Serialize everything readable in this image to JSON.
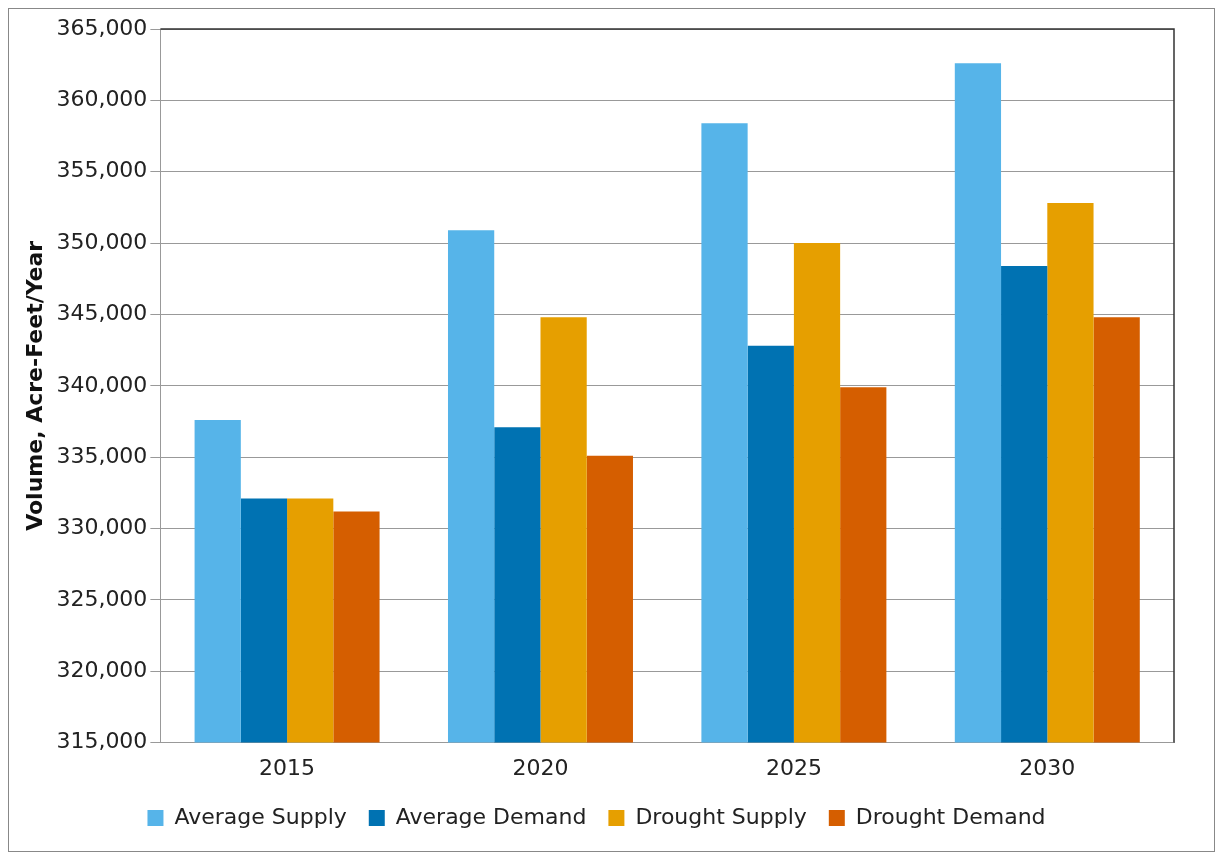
{
  "chart_data": {
    "type": "bar",
    "ylabel": "Volume, Acre-Feet/Year",
    "categories": [
      "2015",
      "2020",
      "2025",
      "2030"
    ],
    "series": [
      {
        "name": "Average Supply",
        "color": "#56b4e9",
        "values": [
          337600,
          350900,
          358400,
          362600
        ]
      },
      {
        "name": "Average Demand",
        "color": "#0072b2",
        "values": [
          332100,
          337100,
          342800,
          348400
        ]
      },
      {
        "name": "Drought Supply",
        "color": "#e69f00",
        "values": [
          332100,
          344800,
          350000,
          352800
        ]
      },
      {
        "name": "Drought Demand",
        "color": "#d55e00",
        "values": [
          331200,
          335100,
          339900,
          344800
        ]
      }
    ],
    "ylim": [
      315000,
      365000
    ],
    "yticks": [
      {
        "value": 315000,
        "label": "315,000"
      },
      {
        "value": 320000,
        "label": "320,000"
      },
      {
        "value": 325000,
        "label": "325,000"
      },
      {
        "value": 330000,
        "label": "330,000"
      },
      {
        "value": 335000,
        "label": "335,000"
      },
      {
        "value": 340000,
        "label": "340,000"
      },
      {
        "value": 345000,
        "label": "345,000"
      },
      {
        "value": 350000,
        "label": "350,000"
      },
      {
        "value": 355000,
        "label": "355,000"
      },
      {
        "value": 360000,
        "label": "360,000"
      },
      {
        "value": 365000,
        "label": "365,000"
      }
    ],
    "grid": "y",
    "legend": "bottom"
  }
}
